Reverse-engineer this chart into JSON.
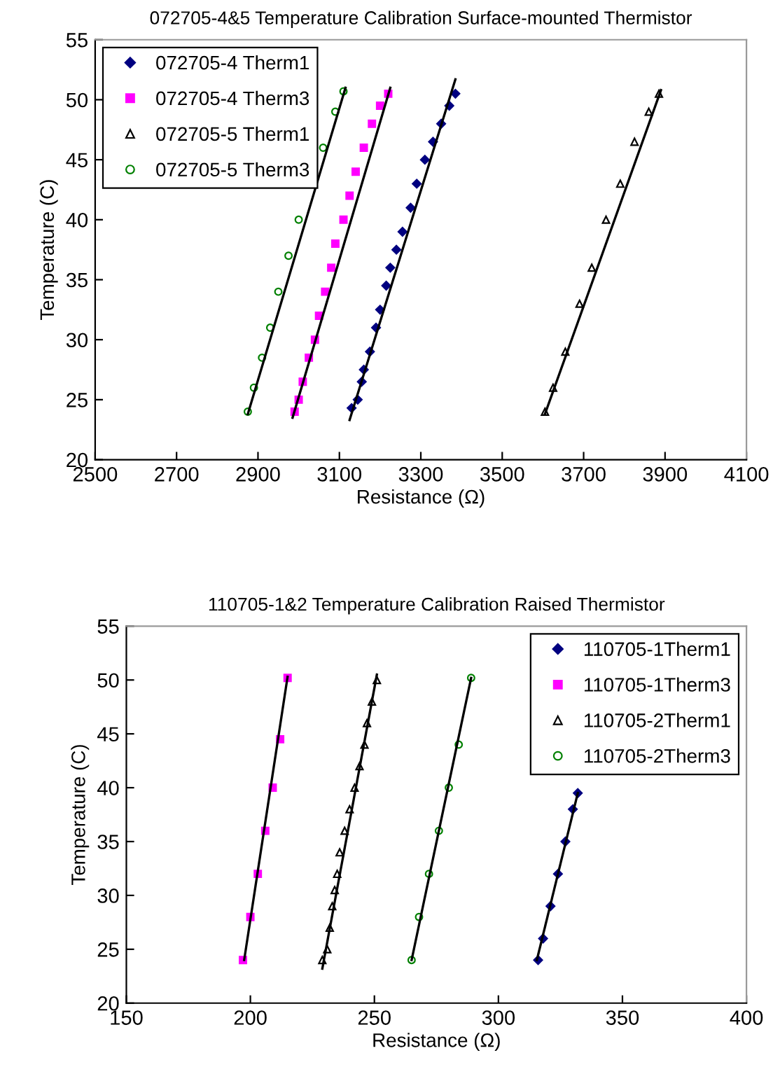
{
  "chart_data": [
    {
      "type": "scatter",
      "title": "072705-4&5 Temperature Calibration Surface-mounted Thermistor",
      "xlabel": "Resistance (Ω)",
      "ylabel": "Temperature (C)",
      "xlim": [
        2500,
        4100
      ],
      "xticks": [
        2500,
        2700,
        2900,
        3100,
        3300,
        3500,
        3700,
        3900,
        4100
      ],
      "ylim": [
        20,
        55
      ],
      "yticks": [
        20,
        25,
        30,
        35,
        40,
        45,
        50,
        55
      ],
      "grid": false,
      "legend": "top left",
      "series": [
        {
          "name": "072705-4 Therm1",
          "color": "#000080",
          "marker": "diamond",
          "x": [
            3130,
            3145,
            3155,
            3160,
            3175,
            3190,
            3200,
            3215,
            3225,
            3240,
            3255,
            3275,
            3290,
            3310,
            3330,
            3350,
            3370,
            3385
          ],
          "values": [
            24.3,
            25,
            26.5,
            27.5,
            29,
            31,
            32.5,
            34.5,
            36,
            37.5,
            39,
            41,
            43,
            45,
            46.5,
            48,
            49.5,
            50.5
          ]
        },
        {
          "name": "072705-4 Therm3",
          "color": "#ff00ff",
          "marker": "square",
          "x": [
            2990,
            3000,
            3010,
            3025,
            3040,
            3050,
            3065,
            3080,
            3090,
            3110,
            3125,
            3140,
            3160,
            3180,
            3200,
            3220
          ],
          "values": [
            24,
            25,
            26.5,
            28.5,
            30,
            32,
            34,
            36,
            38,
            40,
            42,
            44,
            46,
            48,
            49.5,
            50.5
          ]
        },
        {
          "name": "072705-5 Therm1",
          "color": "#000000",
          "marker": "triangle",
          "x": [
            3605,
            3625,
            3655,
            3690,
            3720,
            3755,
            3790,
            3825,
            3860,
            3885
          ],
          "values": [
            24,
            26,
            29,
            33,
            36,
            40,
            43,
            46.5,
            49,
            50.5
          ]
        },
        {
          "name": "072705-5 Therm3",
          "color": "#008000",
          "marker": "circle",
          "x": [
            2875,
            2890,
            2910,
            2930,
            2950,
            2975,
            3000,
            3060,
            3090,
            3110
          ],
          "values": [
            24,
            26,
            28.5,
            31,
            34,
            37,
            40,
            46,
            49,
            50.7
          ]
        },
        {
          "type": "line",
          "color": "#000000",
          "x": [
            3125,
            3385
          ],
          "values": [
            23.3,
            51.7
          ]
        },
        {
          "type": "line",
          "color": "#000000",
          "x": [
            2985,
            3225
          ],
          "values": [
            23.5,
            51
          ]
        },
        {
          "type": "line",
          "color": "#000000",
          "x": [
            3605,
            3890
          ],
          "values": [
            23.8,
            50.8
          ]
        },
        {
          "type": "line",
          "color": "#000000",
          "x": [
            2875,
            3115
          ],
          "values": [
            23.8,
            51
          ]
        }
      ]
    },
    {
      "type": "scatter",
      "title": "110705-1&2 Temperature Calibration Raised Thermistor",
      "xlabel": "Resistance (Ω)",
      "ylabel": "Temperature (C)",
      "xlim": [
        150,
        400
      ],
      "xticks": [
        150,
        200,
        250,
        300,
        350,
        400
      ],
      "ylim": [
        20,
        55
      ],
      "yticks": [
        20,
        25,
        30,
        35,
        40,
        45,
        50,
        55
      ],
      "grid": false,
      "legend": "top right",
      "series": [
        {
          "name": "110705-1Therm1",
          "color": "#000080",
          "marker": "diamond",
          "x": [
            316,
            318,
            321,
            324,
            327,
            330,
            332
          ],
          "values": [
            24,
            26,
            29,
            32,
            35,
            38,
            39.5
          ]
        },
        {
          "name": "110705-1Therm3",
          "color": "#ff00ff",
          "marker": "square",
          "x": [
            197,
            200,
            203,
            206,
            209,
            212,
            215
          ],
          "values": [
            24,
            28,
            32,
            36,
            40,
            44.5,
            50.2
          ]
        },
        {
          "name": "110705-2Therm1",
          "color": "#000000",
          "marker": "triangle",
          "x": [
            229,
            231,
            232,
            233,
            234,
            235,
            236,
            238,
            240,
            242,
            244,
            246,
            247,
            249,
            251
          ],
          "values": [
            24,
            25,
            27,
            29,
            30.5,
            32,
            34,
            36,
            38,
            40,
            42,
            44,
            46,
            48,
            50
          ]
        },
        {
          "name": "110705-2Therm3",
          "color": "#008000",
          "marker": "circle",
          "x": [
            265,
            268,
            272,
            276,
            280,
            284,
            289
          ],
          "values": [
            24,
            28,
            32,
            36,
            40,
            44,
            50.2
          ]
        },
        {
          "type": "line",
          "color": "#000000",
          "x": [
            315.5,
            332
          ],
          "values": [
            24,
            39.5
          ]
        },
        {
          "type": "line",
          "color": "#000000",
          "x": [
            197.5,
            215
          ],
          "values": [
            24,
            50.3
          ]
        },
        {
          "type": "line",
          "color": "#000000",
          "x": [
            229,
            251
          ],
          "values": [
            23.2,
            50.5
          ]
        },
        {
          "type": "line",
          "color": "#000000",
          "x": [
            265,
            289
          ],
          "values": [
            24,
            50.2
          ]
        }
      ]
    }
  ]
}
